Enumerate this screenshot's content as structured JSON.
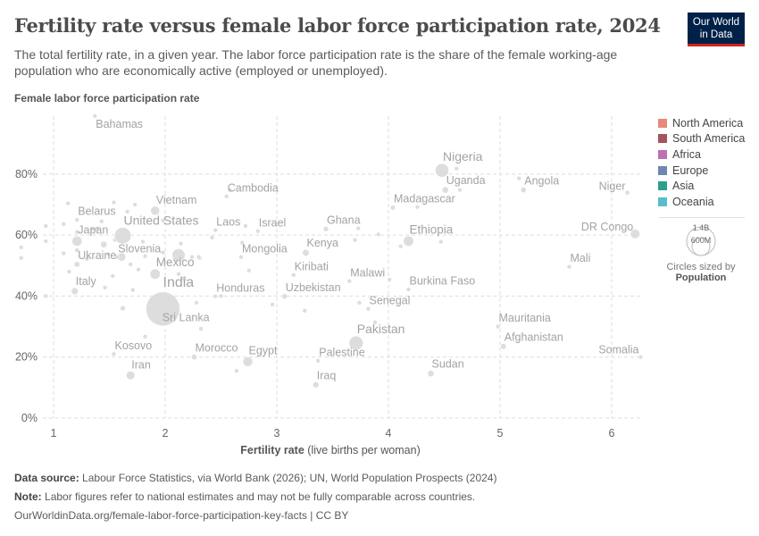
{
  "header": {
    "title": "Fertility rate versus female labor force participation rate, 2024",
    "subtitle": "The total fertility rate, in a given year. The labor force participation rate is the share of the female working-age population who are economically active (employed or unemployed).",
    "logo_line1": "Our World",
    "logo_line2": "in Data"
  },
  "legend": {
    "items": [
      {
        "label": "North America",
        "color": "#e6887a"
      },
      {
        "label": "South America",
        "color": "#a2555f"
      },
      {
        "label": "Africa",
        "color": "#b971b4"
      },
      {
        "label": "Europe",
        "color": "#6e86b0"
      },
      {
        "label": "Asia",
        "color": "#2e9e8f"
      },
      {
        "label": "Oceania",
        "color": "#5bbccb"
      }
    ],
    "size_big": "1.4B",
    "size_small": "600M",
    "sized_by": "Circles sized by",
    "sized_var": "Population"
  },
  "footer": {
    "source_label": "Data source:",
    "source": "Labour Force Statistics, via World Bank (2026); UN, World Population Prospects (2024)",
    "note_label": "Note:",
    "note": "Labor figures refer to national estimates and may not be fully comparable across countries.",
    "url": "OurWorldinData.org/female-labor-force-participation-key-facts | CC BY"
  },
  "chart_data": {
    "type": "scatter",
    "xlabel": "Fertility rate",
    "xlabel_suffix": "(live births per woman)",
    "ylabel": "Female labor force participation rate",
    "xlim": [
      0.72,
      6.28
    ],
    "ylim": [
      0,
      99
    ],
    "xticks": [
      1,
      2,
      3,
      4,
      5,
      6
    ],
    "yticks": [
      0,
      20,
      40,
      60,
      80
    ],
    "ytick_labels": [
      "0%",
      "20%",
      "40%",
      "60%",
      "80%"
    ],
    "grid": true,
    "point_color": "#dddddd",
    "labeled_points": [
      {
        "name": "Bahamas",
        "x": 1.37,
        "y": 99,
        "pop": 0.4
      },
      {
        "name": "Nigeria",
        "x": 4.48,
        "y": 81.2,
        "pop": 230
      },
      {
        "name": "Uganda",
        "x": 4.51,
        "y": 74.8,
        "pop": 50
      },
      {
        "name": "Angola",
        "x": 5.21,
        "y": 74.8,
        "pop": 37
      },
      {
        "name": "Niger",
        "x": 6.14,
        "y": 73.9,
        "pop": 27
      },
      {
        "name": "Cambodia",
        "x": 2.55,
        "y": 72.7,
        "pop": 17
      },
      {
        "name": "Vietnam",
        "x": 1.91,
        "y": 68,
        "pop": 100
      },
      {
        "name": "Madagascar",
        "x": 4.04,
        "y": 69,
        "pop": 31
      },
      {
        "name": "Belarus",
        "x": 1.21,
        "y": 65,
        "pop": 9
      },
      {
        "name": "Laos",
        "x": 2.45,
        "y": 61.6,
        "pop": 7.7
      },
      {
        "name": "Israel",
        "x": 2.83,
        "y": 61.3,
        "pop": 9.4
      },
      {
        "name": "Ghana",
        "x": 3.44,
        "y": 62,
        "pop": 34
      },
      {
        "name": "DR Congo",
        "x": 6.21,
        "y": 60.4,
        "pop": 109
      },
      {
        "name": "Ethiopia",
        "x": 4.18,
        "y": 58,
        "pop": 130
      },
      {
        "name": "United States",
        "x": 1.62,
        "y": 59.8,
        "pop": 340
      },
      {
        "name": "Japan",
        "x": 1.21,
        "y": 58,
        "pop": 124
      },
      {
        "name": "Kenya",
        "x": 3.26,
        "y": 54.2,
        "pop": 56
      },
      {
        "name": "Mongolia",
        "x": 2.68,
        "y": 52.8,
        "pop": 3.5
      },
      {
        "name": "Slovenia",
        "x": 1.57,
        "y": 52.8,
        "pop": 2.1
      },
      {
        "name": "Mali",
        "x": 5.62,
        "y": 49.6,
        "pop": 24
      },
      {
        "name": "Ukraine",
        "x": 1.21,
        "y": 50.4,
        "pop": 38
      },
      {
        "name": "Kiribati",
        "x": 3.15,
        "y": 46.9,
        "pop": 0.13
      },
      {
        "name": "Mexico",
        "x": 1.91,
        "y": 47.2,
        "pop": 130
      },
      {
        "name": "Malawi",
        "x": 3.65,
        "y": 44.9,
        "pop": 21
      },
      {
        "name": "Burkina Faso",
        "x": 4.18,
        "y": 42.2,
        "pop": 23
      },
      {
        "name": "Italy",
        "x": 1.19,
        "y": 41.6,
        "pop": 59
      },
      {
        "name": "Honduras",
        "x": 2.45,
        "y": 39.9,
        "pop": 10.8
      },
      {
        "name": "Uzbekistan",
        "x": 3.07,
        "y": 39.9,
        "pop": 36
      },
      {
        "name": "India",
        "x": 1.98,
        "y": 35.8,
        "pop": 1450
      },
      {
        "name": "Senegal",
        "x": 3.82,
        "y": 35.8,
        "pop": 18
      },
      {
        "name": "Sri Lanka",
        "x": 2.07,
        "y": 33,
        "pop": 23
      },
      {
        "name": "Mauritania",
        "x": 4.98,
        "y": 30,
        "pop": 5
      },
      {
        "name": "Pakistan",
        "x": 3.71,
        "y": 24.6,
        "pop": 250
      },
      {
        "name": "Afghanistan",
        "x": 5.03,
        "y": 23.5,
        "pop": 42
      },
      {
        "name": "Kosovo",
        "x": 1.54,
        "y": 21,
        "pop": 1.7
      },
      {
        "name": "Morocco",
        "x": 2.26,
        "y": 20,
        "pop": 38
      },
      {
        "name": "Egypt",
        "x": 2.74,
        "y": 18.5,
        "pop": 116
      },
      {
        "name": "Somalia",
        "x": 6.26,
        "y": 20,
        "pop": 19
      },
      {
        "name": "Palestine",
        "x": 3.37,
        "y": 18.8,
        "pop": 5.5
      },
      {
        "name": "Iran",
        "x": 1.69,
        "y": 14,
        "pop": 91
      },
      {
        "name": "Sudan",
        "x": 4.38,
        "y": 14.6,
        "pop": 50
      },
      {
        "name": "Iraq",
        "x": 3.35,
        "y": 10.9,
        "pop": 46
      }
    ],
    "other_points": [
      {
        "x": 0.71,
        "y": 56,
        "pop": 8
      },
      {
        "x": 0.71,
        "y": 52.5
      },
      {
        "x": 0.93,
        "y": 63
      },
      {
        "x": 0.93,
        "y": 40
      },
      {
        "x": 1.09,
        "y": 63.6
      },
      {
        "x": 1.09,
        "y": 54
      },
      {
        "x": 1.13,
        "y": 70.4
      },
      {
        "x": 1.14,
        "y": 48,
        "pop": 5
      },
      {
        "x": 1.21,
        "y": 61,
        "pop": 20
      },
      {
        "x": 1.21,
        "y": 55,
        "pop": 25
      },
      {
        "x": 1.3,
        "y": 52.2,
        "pop": 3
      },
      {
        "x": 1.35,
        "y": 62,
        "pop": 10
      },
      {
        "x": 1.39,
        "y": 62.2,
        "pop": 6
      },
      {
        "x": 1.43,
        "y": 64.5,
        "pop": 4
      },
      {
        "x": 1.54,
        "y": 70.7
      },
      {
        "x": 1.45,
        "y": 56.9,
        "pop": 50
      },
      {
        "x": 1.55,
        "y": 58.4,
        "pop": 15
      },
      {
        "x": 1.49,
        "y": 53.7,
        "pop": 10
      },
      {
        "x": 1.53,
        "y": 46.6
      },
      {
        "x": 1.46,
        "y": 42.8
      },
      {
        "x": 1.66,
        "y": 67.7
      },
      {
        "x": 1.73,
        "y": 70
      },
      {
        "x": 1.61,
        "y": 52.8,
        "pop": 84
      },
      {
        "x": 1.69,
        "y": 50.4,
        "pop": 5
      },
      {
        "x": 1.76,
        "y": 48.7,
        "pop": 3
      },
      {
        "x": 1.82,
        "y": 53.1,
        "pop": 4
      },
      {
        "x": 1.8,
        "y": 57.8,
        "pop": 3
      },
      {
        "x": 1.98,
        "y": 64.8,
        "pop": 12
      },
      {
        "x": 1.98,
        "y": 54.3,
        "pop": 3
      },
      {
        "x": 2.14,
        "y": 57.2
      },
      {
        "x": 2.12,
        "y": 53.4,
        "pop": 212
      },
      {
        "x": 2.24,
        "y": 52.8,
        "pop": 3
      },
      {
        "x": 2.31,
        "y": 52.5,
        "pop": 2
      },
      {
        "x": 2.12,
        "y": 47.2,
        "pop": 20
      },
      {
        "x": 2.17,
        "y": 45.7,
        "pop": 30
      },
      {
        "x": 1.62,
        "y": 36,
        "pop": 33
      },
      {
        "x": 1.71,
        "y": 42
      },
      {
        "x": 2.28,
        "y": 37.8
      },
      {
        "x": 2.58,
        "y": 74.8
      },
      {
        "x": 2.72,
        "y": 63
      },
      {
        "x": 2.42,
        "y": 59.2
      },
      {
        "x": 2.69,
        "y": 57.5
      },
      {
        "x": 2.3,
        "y": 52.8
      },
      {
        "x": 2.75,
        "y": 48.4
      },
      {
        "x": 2.5,
        "y": 40
      },
      {
        "x": 2.32,
        "y": 29.3
      },
      {
        "x": 2.96,
        "y": 37.2
      },
      {
        "x": 3.25,
        "y": 35.2
      },
      {
        "x": 3.73,
        "y": 62.2
      },
      {
        "x": 3.7,
        "y": 58.4
      },
      {
        "x": 3.91,
        "y": 60.2
      },
      {
        "x": 4.01,
        "y": 45.4
      },
      {
        "x": 3.74,
        "y": 37.8
      },
      {
        "x": 3.88,
        "y": 31.4
      },
      {
        "x": 2.64,
        "y": 15.5
      },
      {
        "x": 4.11,
        "y": 56.3
      },
      {
        "x": 4.47,
        "y": 57.8,
        "pop": 5
      },
      {
        "x": 4.26,
        "y": 69.2
      },
      {
        "x": 4.61,
        "y": 81.8,
        "pop": 10
      },
      {
        "x": 4.64,
        "y": 74.8
      },
      {
        "x": 5.17,
        "y": 78.6
      },
      {
        "x": 1.82,
        "y": 26.7
      },
      {
        "x": 0.93,
        "y": 58
      }
    ]
  }
}
